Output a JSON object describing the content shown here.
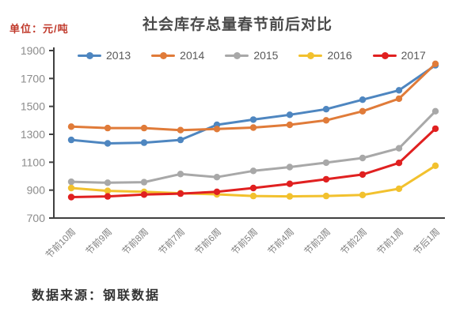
{
  "header": {
    "unit_label": "单位：元/吨",
    "title": "社会库存总量春节前后对比"
  },
  "footer": {
    "source": "数据来源：钢联数据"
  },
  "colors": {
    "title_text": "#4a4a4a",
    "unit_text": "#c0392b",
    "axis_line": "#404040",
    "y_tick_text": "#8c8c8c",
    "x_tick_text": "#7f7f7f",
    "legend_text": "#595959",
    "source_text": "#333333",
    "background": "#ffffff"
  },
  "chart_data": {
    "type": "line",
    "title": "社会库存总量春节前后对比",
    "unit": "元/吨",
    "xlabel": "",
    "ylabel": "",
    "grid": false,
    "legend_position": "top",
    "marker": "circle",
    "categories": [
      "节前10周",
      "节前9周",
      "节前8周",
      "节前7周",
      "节前6周",
      "节前5周",
      "节前4周",
      "节前3周",
      "节前2周",
      "节前1周",
      "节后1周"
    ],
    "y_axis": {
      "min": 700,
      "max": 1900,
      "step": 200,
      "ticks": [
        700,
        900,
        1100,
        1300,
        1500,
        1700,
        1900
      ]
    },
    "series": [
      {
        "name": "2013",
        "color": "#4e86c0",
        "values": [
          1260,
          1235,
          1240,
          1260,
          1368,
          1405,
          1440,
          1480,
          1548,
          1615,
          1795
        ]
      },
      {
        "name": "2014",
        "color": "#e07b39",
        "values": [
          1355,
          1345,
          1345,
          1330,
          1338,
          1348,
          1368,
          1400,
          1465,
          1555,
          1805
        ]
      },
      {
        "name": "2015",
        "color": "#a8a8a8",
        "values": [
          960,
          953,
          957,
          1015,
          993,
          1038,
          1065,
          1097,
          1130,
          1200,
          1465
        ]
      },
      {
        "name": "2016",
        "color": "#f2c12e",
        "values": [
          915,
          895,
          888,
          878,
          870,
          858,
          855,
          858,
          865,
          910,
          1075
        ]
      },
      {
        "name": "2017",
        "color": "#e02020",
        "values": [
          850,
          855,
          868,
          875,
          888,
          915,
          945,
          978,
          1012,
          1095,
          1340
        ]
      }
    ]
  }
}
